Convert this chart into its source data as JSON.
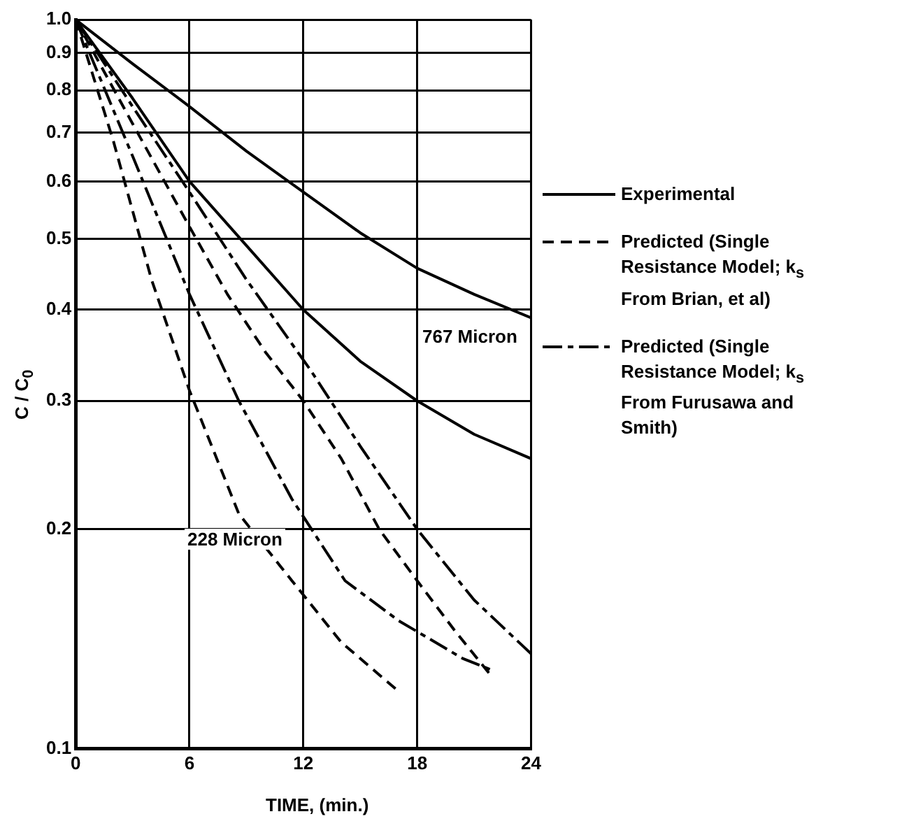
{
  "chart_data": {
    "type": "line",
    "xlabel": "TIME, (min.)",
    "ylabel": "C / C$_{0}$",
    "log": "y",
    "grid": true,
    "legend": "right",
    "marker": "none",
    "xlim": [
      0,
      24
    ],
    "xticks": [
      0,
      6,
      12,
      18,
      24
    ],
    "ylim": [
      0.1,
      1
    ],
    "yticks": [
      0.1,
      0.2,
      0.3,
      0.4,
      0.5,
      0.6,
      0.7,
      0.8,
      0.9,
      {
        "value": 1,
        "label": "1.0"
      }
    ],
    "series": [
      {
        "name": "Experimental",
        "color": "#000000",
        "line_style": "solid",
        "x": [
          0,
          3,
          6,
          9,
          12,
          15,
          18,
          21,
          24
        ],
        "values": [
          1,
          0.87,
          0.76,
          0.66,
          0.58,
          0.51,
          0.456,
          0.42,
          0.39
        ]
      },
      {
        "name": "Predicted (Single Resistance Model; k$_{s}$ From Brian, et al)",
        "color": "#000000",
        "line_style": "dashed",
        "x": [
          0,
          3,
          6,
          8,
          10,
          12,
          14,
          16,
          18,
          20,
          22
        ],
        "values": [
          1,
          0.72,
          0.52,
          0.42,
          0.35,
          0.3,
          0.25,
          0.2,
          0.17,
          0.145,
          0.125
        ]
      },
      {
        "name": "Predicted (Single Resistance Model; k$_{s}$ From Furusawa and Smith)",
        "color": "#000000",
        "line_style": "dashdot",
        "x": [
          0,
          3,
          6,
          9,
          12.4,
          15,
          18,
          21,
          24
        ],
        "values": [
          1,
          0.76,
          0.58,
          0.44,
          0.33,
          0.26,
          0.2,
          0.16,
          0.135
        ]
      },
      {
        "color": "#000000",
        "line_style": "solid",
        "x": [
          0,
          3,
          6,
          9,
          12,
          15,
          18,
          21,
          24
        ],
        "values": [
          1,
          0.78,
          0.6,
          0.49,
          0.4,
          0.34,
          0.3,
          0.27,
          0.25
        ]
      },
      {
        "color": "#000000",
        "line_style": "dashed",
        "x": [
          0,
          2,
          4,
          6,
          8.6,
          11.4,
          14,
          17
        ],
        "values": [
          1,
          0.68,
          0.44,
          0.31,
          0.21,
          0.17,
          0.14,
          0.12
        ]
      },
      {
        "color": "#000000",
        "line_style": "dashdot",
        "x": [
          0,
          3,
          6,
          8.6,
          11.4,
          14.2,
          17,
          20.4,
          22
        ],
        "values": [
          1,
          0.65,
          0.42,
          0.3,
          0.22,
          0.17,
          0.15,
          0.133,
          0.128
        ]
      }
    ],
    "annotations": [
      "767 Micron",
      "228 Micron"
    ]
  }
}
